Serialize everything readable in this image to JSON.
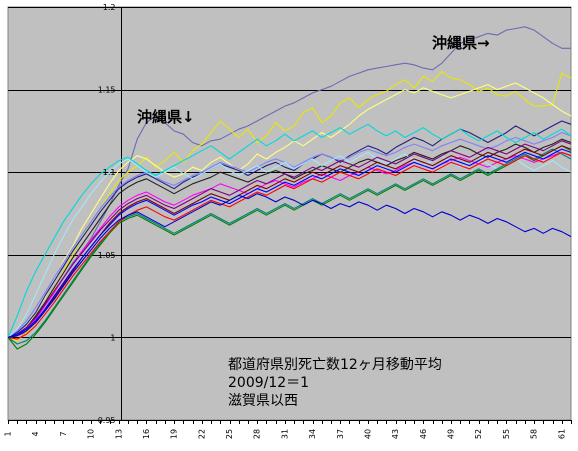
{
  "chart_data": {
    "type": "line",
    "title": "",
    "xlabel": "",
    "ylabel": "",
    "ylim": [
      0.95,
      1.2
    ],
    "y_ticks": [
      "0.95",
      "1",
      "1.05",
      "1.1",
      "1.15",
      "1.2"
    ],
    "y_tick_values": [
      0.95,
      1.0,
      1.05,
      1.1,
      1.15,
      1.2
    ],
    "x_range": [
      1,
      62
    ],
    "x_ticks": [
      "1",
      "4",
      "7",
      "10",
      "13",
      "16",
      "19",
      "22",
      "25",
      "28",
      "31",
      "34",
      "37",
      "40",
      "43",
      "46",
      "49",
      "52",
      "55",
      "58",
      "61"
    ],
    "x_tick_values": [
      1,
      4,
      7,
      10,
      13,
      16,
      19,
      22,
      25,
      28,
      31,
      34,
      37,
      40,
      43,
      46,
      49,
      52,
      55,
      58,
      61
    ],
    "grid": "horizontal major gridlines",
    "plot_background": "#c0c0c0",
    "annotation_lines": [
      "都道府県別死亡数12ヶ月移動平均",
      "2009/12＝1",
      "滋賀県以西"
    ],
    "callouts": [
      {
        "text": "沖縄県→",
        "x": 50,
        "y": 1.185
      },
      {
        "text": "沖縄県↓",
        "x": 14,
        "y": 1.133
      }
    ],
    "series": [
      {
        "color": "#6b6bb5",
        "values": [
          1,
          1.001,
          1.003,
          1.01,
          1.02,
          1.028,
          1.036,
          1.045,
          1.052,
          1.06,
          1.07,
          1.08,
          1.092,
          1.102,
          1.12,
          1.13,
          1.134,
          1.13,
          1.125,
          1.123,
          1.118,
          1.116,
          1.119,
          1.12,
          1.123,
          1.126,
          1.128,
          1.131,
          1.134,
          1.137,
          1.14,
          1.142,
          1.145,
          1.148,
          1.15,
          1.152,
          1.155,
          1.158,
          1.16,
          1.162,
          1.163,
          1.164,
          1.165,
          1.166,
          1.165,
          1.163,
          1.162,
          1.166,
          1.172,
          1.178,
          1.18,
          1.182,
          1.184,
          1.183,
          1.186,
          1.187,
          1.188,
          1.186,
          1.182,
          1.178,
          1.175,
          1.175
        ]
      },
      {
        "color": "#e8e800",
        "values": [
          1,
          0.998,
          1.003,
          1.009,
          1.02,
          1.029,
          1.04,
          1.05,
          1.06,
          1.07,
          1.078,
          1.087,
          1.095,
          1.1,
          1.104,
          1.109,
          1.103,
          1.107,
          1.112,
          1.106,
          1.113,
          1.117,
          1.124,
          1.131,
          1.126,
          1.121,
          1.126,
          1.118,
          1.122,
          1.13,
          1.125,
          1.128,
          1.136,
          1.139,
          1.13,
          1.134,
          1.142,
          1.145,
          1.139,
          1.144,
          1.147,
          1.149,
          1.153,
          1.156,
          1.151,
          1.158,
          1.155,
          1.161,
          1.157,
          1.156,
          1.153,
          1.149,
          1.151,
          1.147,
          1.146,
          1.149,
          1.144,
          1.14,
          1.14,
          1.141,
          1.16,
          1.157
        ]
      },
      {
        "color": "#ffff80",
        "values": [
          1,
          1.002,
          1.006,
          1.015,
          1.024,
          1.035,
          1.046,
          1.055,
          1.066,
          1.075,
          1.084,
          1.093,
          1.101,
          1.106,
          1.11,
          1.108,
          1.104,
          1.1,
          1.097,
          1.099,
          1.103,
          1.101,
          1.106,
          1.109,
          1.105,
          1.101,
          1.105,
          1.111,
          1.108,
          1.112,
          1.115,
          1.119,
          1.116,
          1.12,
          1.124,
          1.121,
          1.125,
          1.129,
          1.134,
          1.138,
          1.141,
          1.144,
          1.147,
          1.15,
          1.148,
          1.151,
          1.149,
          1.147,
          1.145,
          1.147,
          1.149,
          1.151,
          1.153,
          1.15,
          1.152,
          1.154,
          1.151,
          1.148,
          1.145,
          1.141,
          1.137,
          1.134
        ]
      },
      {
        "color": "#202080",
        "values": [
          1,
          1.003,
          1.008,
          1.015,
          1.025,
          1.034,
          1.043,
          1.052,
          1.06,
          1.068,
          1.076,
          1.083,
          1.09,
          1.094,
          1.097,
          1.099,
          1.096,
          1.093,
          1.09,
          1.094,
          1.097,
          1.099,
          1.102,
          1.105,
          1.103,
          1.101,
          1.098,
          1.101,
          1.104,
          1.106,
          1.103,
          1.101,
          1.105,
          1.108,
          1.111,
          1.109,
          1.106,
          1.11,
          1.113,
          1.116,
          1.114,
          1.111,
          1.115,
          1.118,
          1.121,
          1.119,
          1.116,
          1.12,
          1.123,
          1.126,
          1.124,
          1.121,
          1.118,
          1.121,
          1.124,
          1.128,
          1.125,
          1.122,
          1.125,
          1.128,
          1.131,
          1.129
        ]
      },
      {
        "color": "#202020",
        "values": [
          1,
          1.002,
          1.006,
          1.013,
          1.021,
          1.03,
          1.039,
          1.048,
          1.056,
          1.064,
          1.072,
          1.08,
          1.087,
          1.091,
          1.094,
          1.096,
          1.093,
          1.09,
          1.087,
          1.09,
          1.093,
          1.095,
          1.097,
          1.1,
          1.098,
          1.096,
          1.094,
          1.097,
          1.099,
          1.101,
          1.099,
          1.096,
          1.099,
          1.101,
          1.104,
          1.102,
          1.1,
          1.103,
          1.106,
          1.108,
          1.106,
          1.104,
          1.107,
          1.109,
          1.112,
          1.11,
          1.108,
          1.111,
          1.113,
          1.116,
          1.114,
          1.111,
          1.109,
          1.112,
          1.114,
          1.117,
          1.115,
          1.112,
          1.115,
          1.117,
          1.12,
          1.118
        ]
      },
      {
        "color": "#8080ff",
        "values": [
          1,
          1.004,
          1.01,
          1.018,
          1.027,
          1.036,
          1.045,
          1.054,
          1.062,
          1.07,
          1.078,
          1.085,
          1.091,
          1.095,
          1.098,
          1.1,
          1.097,
          1.094,
          1.092,
          1.095,
          1.098,
          1.1,
          1.103,
          1.106,
          1.104,
          1.102,
          1.1,
          1.103,
          1.106,
          1.108,
          1.106,
          1.103,
          1.106,
          1.109,
          1.111,
          1.109,
          1.107,
          1.109,
          1.112,
          1.114,
          1.112,
          1.11,
          1.112,
          1.115,
          1.117,
          1.115,
          1.113,
          1.116,
          1.118,
          1.12,
          1.118,
          1.116,
          1.114,
          1.116,
          1.119,
          1.121,
          1.119,
          1.117,
          1.119,
          1.121,
          1.124,
          1.122
        ]
      },
      {
        "color": "#ff00ff",
        "values": [
          1,
          1.001,
          1.005,
          1.011,
          1.019,
          1.027,
          1.036,
          1.044,
          1.052,
          1.059,
          1.066,
          1.073,
          1.079,
          1.083,
          1.086,
          1.088,
          1.085,
          1.082,
          1.08,
          1.083,
          1.086,
          1.088,
          1.09,
          1.093,
          1.091,
          1.089,
          1.087,
          1.09,
          1.093,
          1.095,
          1.093,
          1.091,
          1.094,
          1.096,
          1.099,
          1.097,
          1.095,
          1.098,
          1.1,
          1.103,
          1.101,
          1.099,
          1.101,
          1.104,
          1.106,
          1.104,
          1.102,
          1.105,
          1.107,
          1.109,
          1.107,
          1.105,
          1.103,
          1.106,
          1.108,
          1.11,
          1.108,
          1.106,
          1.108,
          1.11,
          1.112,
          1.11
        ]
      },
      {
        "color": "#00d8d8",
        "values": [
          1,
          1.013,
          1.028,
          1.04,
          1.05,
          1.06,
          1.07,
          1.078,
          1.086,
          1.093,
          1.099,
          1.103,
          1.107,
          1.109,
          1.105,
          1.101,
          1.098,
          1.101,
          1.104,
          1.107,
          1.11,
          1.113,
          1.116,
          1.112,
          1.108,
          1.112,
          1.116,
          1.12,
          1.116,
          1.119,
          1.123,
          1.119,
          1.122,
          1.125,
          1.121,
          1.124,
          1.127,
          1.123,
          1.126,
          1.129,
          1.125,
          1.122,
          1.125,
          1.121,
          1.124,
          1.127,
          1.123,
          1.12,
          1.123,
          1.126,
          1.122,
          1.119,
          1.122,
          1.125,
          1.121,
          1.118,
          1.121,
          1.124,
          1.12,
          1.123,
          1.126,
          1.122
        ]
      },
      {
        "color": "#a0e8ff",
        "values": [
          1,
          1.005,
          1.014,
          1.026,
          1.038,
          1.05,
          1.061,
          1.071,
          1.079,
          1.087,
          1.094,
          1.1,
          1.105,
          1.108,
          1.104,
          1.1,
          1.097,
          1.1,
          1.103,
          1.099,
          1.096,
          1.099,
          1.102,
          1.105,
          1.101,
          1.098,
          1.101,
          1.104,
          1.1,
          1.103,
          1.106,
          1.102,
          1.105,
          1.108,
          1.104,
          1.107,
          1.11,
          1.106,
          1.109,
          1.112,
          1.108,
          1.105,
          1.108,
          1.111,
          1.107,
          1.104,
          1.107,
          1.11,
          1.106,
          1.103,
          1.106,
          1.109,
          1.105,
          1.102,
          1.105,
          1.108,
          1.104,
          1.101,
          1.104,
          1.107,
          1.103,
          1.1
        ]
      },
      {
        "color": "#008080",
        "values": [
          1,
          0.996,
          0.998,
          1.003,
          1.01,
          1.018,
          1.026,
          1.034,
          1.042,
          1.05,
          1.057,
          1.064,
          1.07,
          1.073,
          1.075,
          1.072,
          1.069,
          1.066,
          1.063,
          1.066,
          1.069,
          1.072,
          1.075,
          1.072,
          1.069,
          1.072,
          1.075,
          1.078,
          1.075,
          1.078,
          1.081,
          1.078,
          1.081,
          1.084,
          1.081,
          1.084,
          1.087,
          1.084,
          1.087,
          1.09,
          1.087,
          1.09,
          1.093,
          1.09,
          1.093,
          1.096,
          1.093,
          1.096,
          1.099,
          1.096,
          1.099,
          1.102,
          1.099,
          1.102,
          1.105,
          1.108,
          1.111,
          1.108,
          1.111,
          1.114,
          1.111,
          1.108
        ]
      },
      {
        "color": "#008000",
        "values": [
          1,
          0.993,
          0.996,
          1.002,
          1.009,
          1.017,
          1.025,
          1.033,
          1.041,
          1.049,
          1.056,
          1.063,
          1.069,
          1.072,
          1.074,
          1.071,
          1.068,
          1.065,
          1.062,
          1.065,
          1.068,
          1.071,
          1.074,
          1.071,
          1.068,
          1.071,
          1.074,
          1.077,
          1.074,
          1.077,
          1.08,
          1.077,
          1.08,
          1.083,
          1.08,
          1.083,
          1.086,
          1.083,
          1.086,
          1.089,
          1.086,
          1.089,
          1.092,
          1.089,
          1.092,
          1.095,
          1.092,
          1.095,
          1.098,
          1.095,
          1.098,
          1.101,
          1.098,
          1.101,
          1.104,
          1.107,
          1.11,
          1.107,
          1.11,
          1.113,
          1.116,
          1.113
        ]
      },
      {
        "color": "#800000",
        "values": [
          1,
          1.001,
          1.004,
          1.009,
          1.016,
          1.024,
          1.032,
          1.04,
          1.048,
          1.055,
          1.062,
          1.069,
          1.075,
          1.079,
          1.082,
          1.084,
          1.081,
          1.078,
          1.075,
          1.078,
          1.081,
          1.084,
          1.087,
          1.085,
          1.083,
          1.086,
          1.089,
          1.092,
          1.09,
          1.093,
          1.096,
          1.094,
          1.097,
          1.1,
          1.098,
          1.101,
          1.104,
          1.102,
          1.1,
          1.103,
          1.106,
          1.104,
          1.102,
          1.105,
          1.108,
          1.106,
          1.104,
          1.107,
          1.11,
          1.108,
          1.106,
          1.109,
          1.112,
          1.11,
          1.108,
          1.111,
          1.114,
          1.112,
          1.11,
          1.113,
          1.116,
          1.114
        ]
      },
      {
        "color": "#ff0000",
        "values": [
          1,
          0.999,
          1.002,
          1.007,
          1.014,
          1.021,
          1.029,
          1.037,
          1.044,
          1.051,
          1.058,
          1.064,
          1.07,
          1.074,
          1.077,
          1.079,
          1.076,
          1.073,
          1.071,
          1.074,
          1.077,
          1.08,
          1.083,
          1.081,
          1.079,
          1.082,
          1.085,
          1.088,
          1.086,
          1.089,
          1.092,
          1.09,
          1.093,
          1.096,
          1.094,
          1.097,
          1.1,
          1.098,
          1.096,
          1.099,
          1.102,
          1.1,
          1.098,
          1.101,
          1.104,
          1.102,
          1.1,
          1.103,
          1.106,
          1.104,
          1.102,
          1.105,
          1.108,
          1.106,
          1.104,
          1.107,
          1.11,
          1.108,
          1.106,
          1.109,
          1.112,
          1.11
        ]
      },
      {
        "color": "#800080",
        "values": [
          1,
          1.002,
          1.006,
          1.012,
          1.02,
          1.028,
          1.036,
          1.044,
          1.051,
          1.058,
          1.065,
          1.071,
          1.077,
          1.081,
          1.084,
          1.086,
          1.083,
          1.08,
          1.078,
          1.081,
          1.084,
          1.087,
          1.09,
          1.088,
          1.086,
          1.089,
          1.092,
          1.095,
          1.093,
          1.096,
          1.099,
          1.097,
          1.1,
          1.103,
          1.101,
          1.104,
          1.107,
          1.105,
          1.103,
          1.106,
          1.109,
          1.107,
          1.105,
          1.108,
          1.111,
          1.109,
          1.107,
          1.11,
          1.113,
          1.111,
          1.109,
          1.112,
          1.115,
          1.113,
          1.111,
          1.114,
          1.117,
          1.115,
          1.113,
          1.116,
          1.119,
          1.117
        ]
      },
      {
        "color": "#0000ff",
        "values": [
          1,
          1.002,
          1.005,
          1.01,
          1.017,
          1.025,
          1.033,
          1.041,
          1.048,
          1.055,
          1.062,
          1.068,
          1.074,
          1.078,
          1.081,
          1.083,
          1.08,
          1.077,
          1.074,
          1.077,
          1.08,
          1.082,
          1.085,
          1.083,
          1.081,
          1.084,
          1.087,
          1.09,
          1.088,
          1.091,
          1.094,
          1.092,
          1.095,
          1.098,
          1.096,
          1.099,
          1.102,
          1.1,
          1.098,
          1.101,
          1.104,
          1.102,
          1.1,
          1.103,
          1.106,
          1.104,
          1.102,
          1.105,
          1.108,
          1.106,
          1.104,
          1.107,
          1.11,
          1.108,
          1.106,
          1.109,
          1.112,
          1.11,
          1.108,
          1.111,
          1.114,
          1.112
        ]
      },
      {
        "color": "#0000cc",
        "values": [
          1,
          1.001,
          1.004,
          1.009,
          1.016,
          1.023,
          1.031,
          1.039,
          1.046,
          1.053,
          1.06,
          1.066,
          1.071,
          1.074,
          1.076,
          1.073,
          1.07,
          1.067,
          1.07,
          1.073,
          1.076,
          1.079,
          1.082,
          1.08,
          1.083,
          1.086,
          1.084,
          1.087,
          1.085,
          1.082,
          1.085,
          1.083,
          1.08,
          1.083,
          1.081,
          1.078,
          1.081,
          1.079,
          1.082,
          1.08,
          1.077,
          1.08,
          1.078,
          1.075,
          1.078,
          1.076,
          1.073,
          1.076,
          1.074,
          1.071,
          1.074,
          1.072,
          1.069,
          1.072,
          1.07,
          1.067,
          1.064,
          1.066,
          1.063,
          1.066,
          1.064,
          1.061
        ]
      }
    ]
  }
}
